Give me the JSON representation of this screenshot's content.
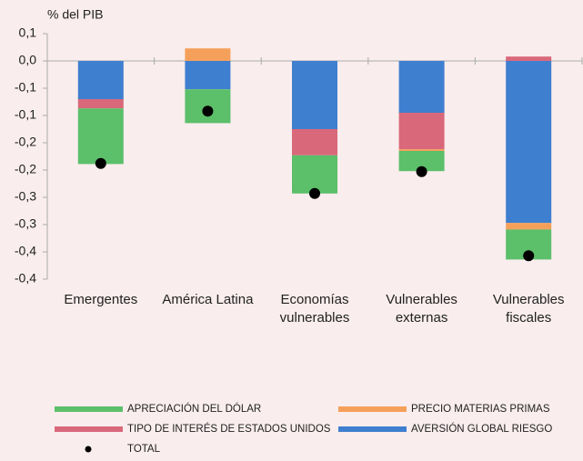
{
  "chart_data": {
    "type": "stacked-bar",
    "y_label": "% del PIB",
    "categories": [
      "Emergentes",
      "América Latina",
      "Economías vulnerables",
      "Vulnerables externas",
      "Vulnerables fiscales"
    ],
    "series": [
      {
        "name": "APRECIACIÓN DEL DÓLAR",
        "color": "#5cbf6a",
        "values": [
          -0.102,
          -0.062,
          -0.07,
          -0.037,
          -0.055
        ]
      },
      {
        "name": "PRECIO MATERIAS PRIMAS",
        "color": "#f5a05a",
        "values": [
          0,
          0.023,
          0,
          -0.003,
          -0.012
        ]
      },
      {
        "name": "TIPO DE INTERÉS DE ESTADOS UNIDOS",
        "color": "#d9687a",
        "values": [
          -0.017,
          0,
          -0.048,
          -0.067,
          0.008
        ]
      },
      {
        "name": "AVERSIÓN GLOBAL RIESGO",
        "color": "#3f7fcf",
        "values": [
          -0.07,
          -0.052,
          -0.125,
          -0.095,
          -0.297
        ]
      }
    ],
    "total": {
      "name": "TOTAL",
      "color": "#000000",
      "values": [
        -0.188,
        -0.092,
        -0.243,
        -0.203,
        -0.357
      ]
    },
    "ylim": [
      -0.4,
      0.05
    ],
    "yticks": [
      {
        "value": 0.05,
        "label": "0,1"
      },
      {
        "value": 0,
        "label": "0,0"
      },
      {
        "value": -0.05,
        "label": "-0,1"
      },
      {
        "value": -0.1,
        "label": "-0,1"
      },
      {
        "value": -0.15,
        "label": "-0,2"
      },
      {
        "value": -0.2,
        "label": "-0,2"
      },
      {
        "value": -0.25,
        "label": "-0,3"
      },
      {
        "value": -0.3,
        "label": "-0,3"
      },
      {
        "value": -0.35,
        "label": "-0,4"
      },
      {
        "value": -0.4,
        "label": "-0,4"
      }
    ]
  }
}
